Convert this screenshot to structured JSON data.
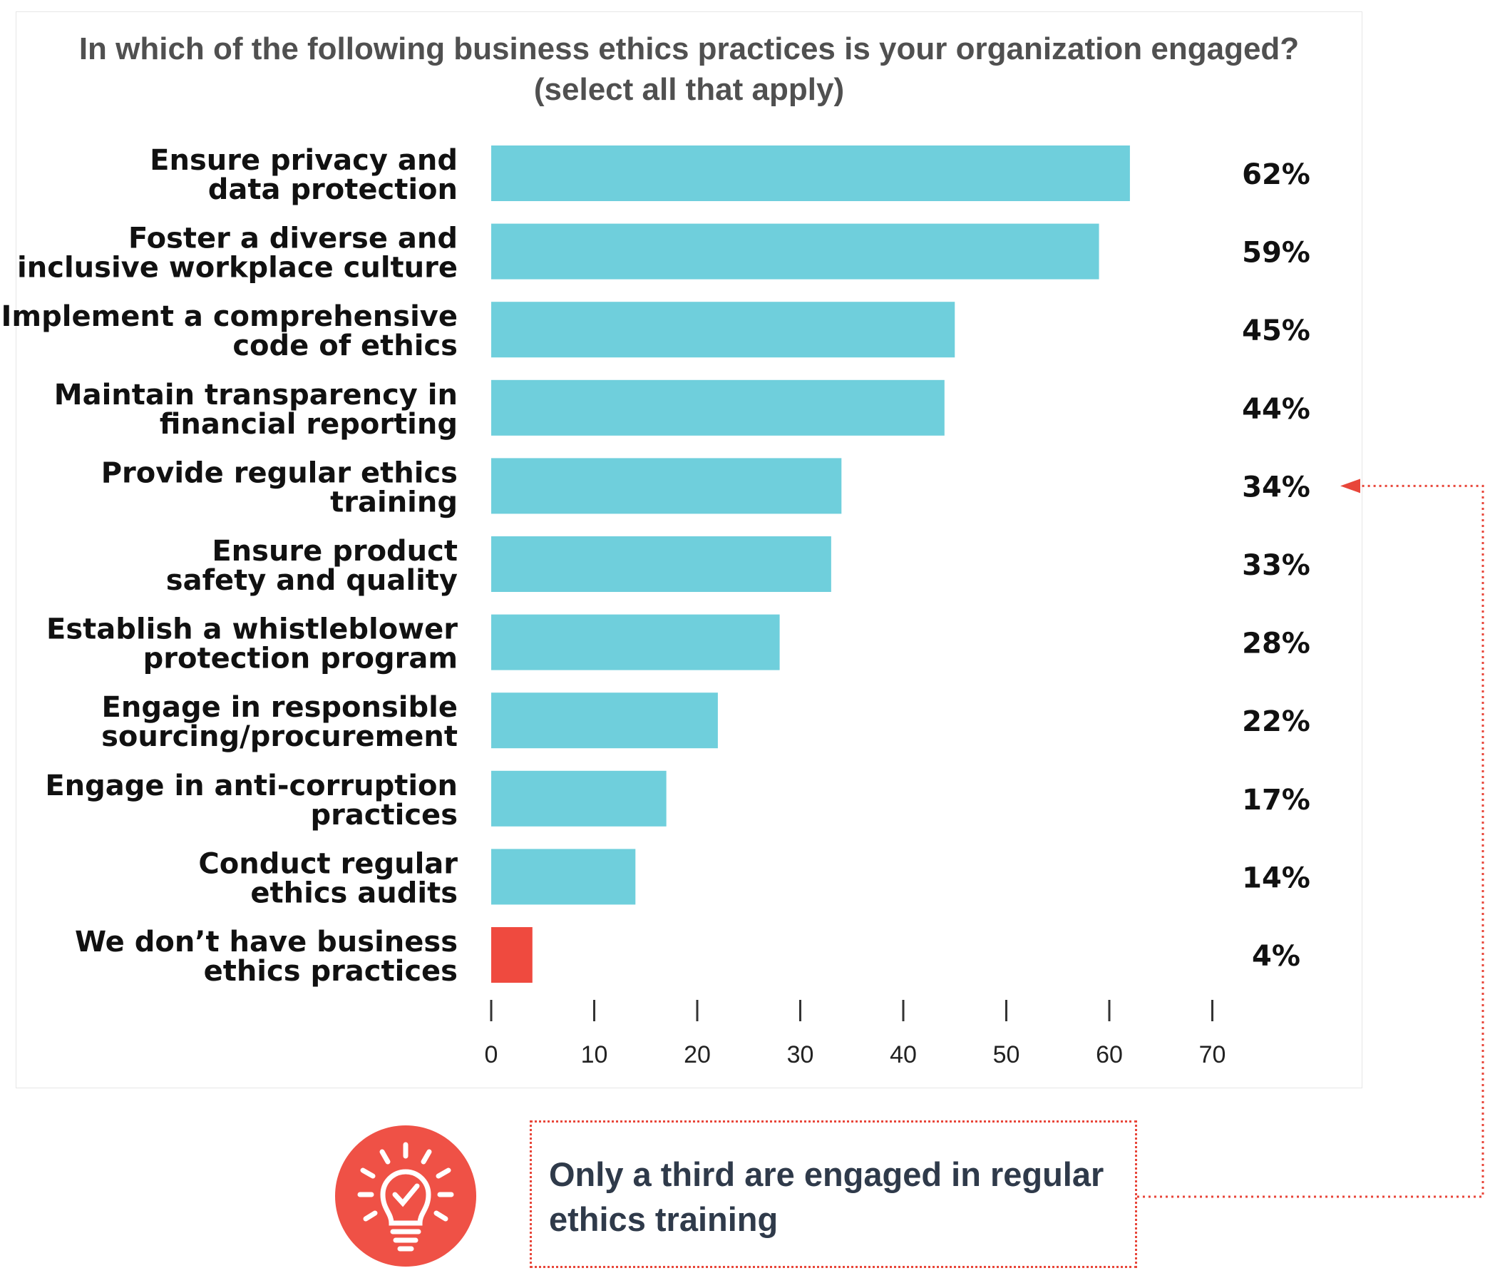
{
  "title_lines": [
    "In which of the following business ethics practices is your organization engaged?",
    "(select all that apply)"
  ],
  "callout": {
    "text_lines": [
      "Only a third are engaged in regular",
      "ethics training"
    ],
    "icon": "lightbulb-check-icon",
    "icon_color": "#ef5146",
    "border_color": "#e8463a"
  },
  "colors": {
    "bar": "#6fcfdc",
    "bar_highlight": "#ef4a3f",
    "arrow": "#e8463a"
  },
  "chart_data": {
    "type": "bar",
    "orientation": "horizontal",
    "title": "In which of the following business ethics practices is your organization engaged? (select all that apply)",
    "categories": [
      [
        "Ensure privacy and",
        "data protection"
      ],
      [
        "Foster a diverse and",
        "inclusive workplace culture"
      ],
      [
        "Implement a comprehensive",
        "code of ethics"
      ],
      [
        "Maintain transparency in",
        "financial reporting"
      ],
      [
        "Provide regular ethics",
        "training"
      ],
      [
        "Ensure product",
        "safety and quality"
      ],
      [
        "Establish a whistleblower",
        "protection program"
      ],
      [
        "Engage in responsible",
        "sourcing/procurement"
      ],
      [
        "Engage in anti-corruption",
        "practices"
      ],
      [
        "Conduct regular",
        "ethics audits"
      ],
      [
        "We don’t have business",
        "ethics practices"
      ]
    ],
    "values": [
      62,
      59,
      45,
      44,
      34,
      33,
      28,
      22,
      17,
      14,
      4
    ],
    "value_labels": [
      "62%",
      "59%",
      "45%",
      "44%",
      "34%",
      "33%",
      "28%",
      "22%",
      "17%",
      "14%",
      "4%"
    ],
    "highlight_index": 10,
    "xlim": [
      0,
      70
    ],
    "xticks": [
      0,
      10,
      20,
      30,
      40,
      50,
      60,
      70
    ],
    "grid": false,
    "legend": "none"
  }
}
